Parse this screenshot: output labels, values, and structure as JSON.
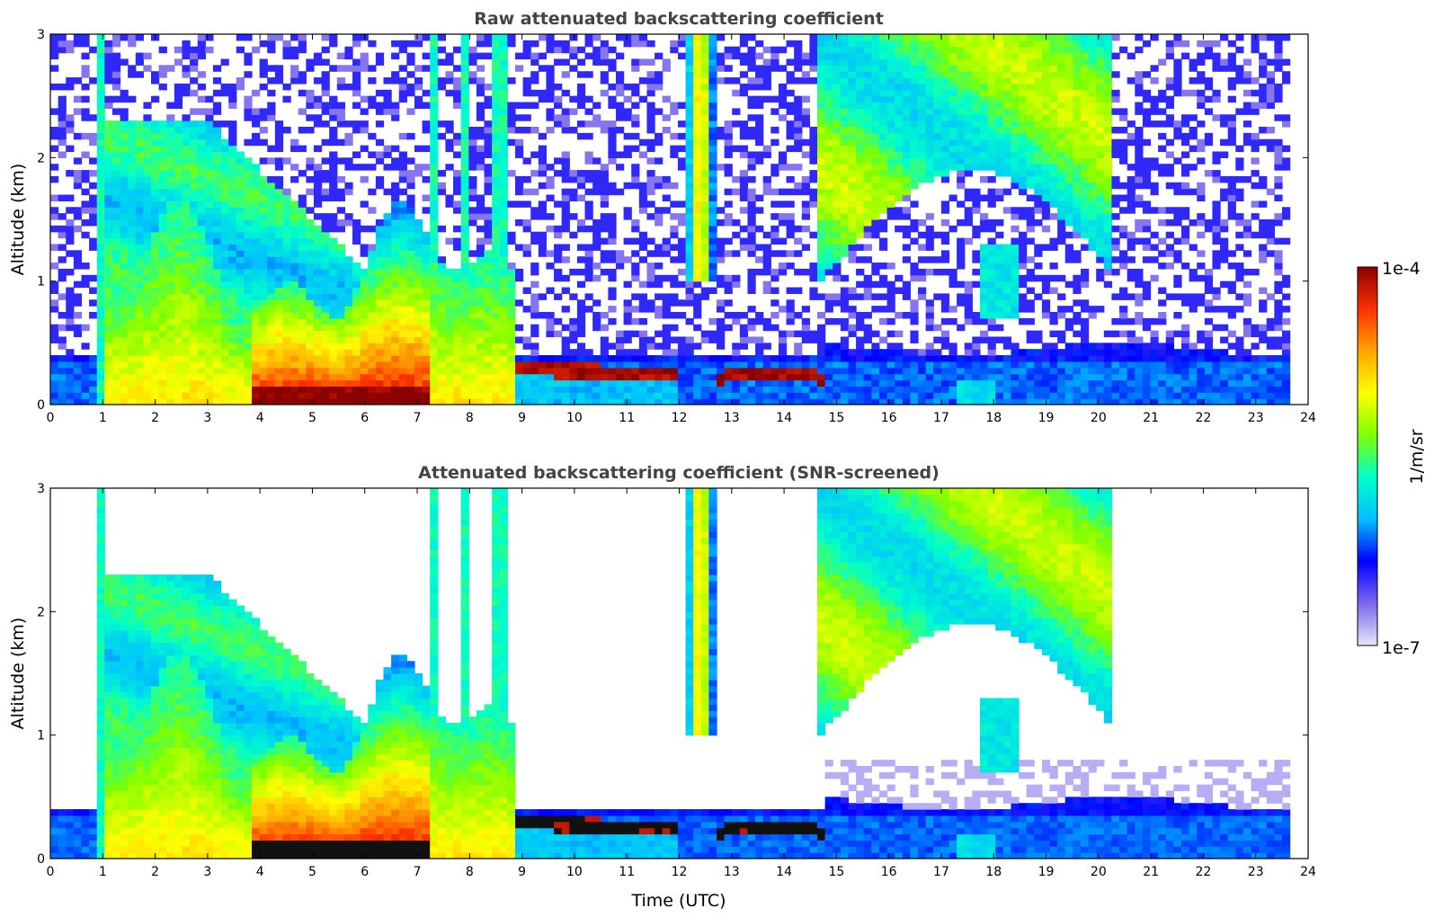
{
  "chart_data": [
    {
      "type": "heatmap",
      "title": "Raw attenuated backscattering coefficient",
      "xlabel": "",
      "ylabel": "Altitude (km)",
      "xlim": [
        0,
        24
      ],
      "ylim": [
        0,
        3
      ],
      "xticks": [
        "0",
        "1",
        "2",
        "3",
        "4",
        "5",
        "6",
        "7",
        "8",
        "9",
        "10",
        "11",
        "12",
        "13",
        "14",
        "15",
        "16",
        "17",
        "18",
        "19",
        "20",
        "21",
        "22",
        "23",
        "24"
      ],
      "yticks": [
        "0",
        "1",
        "2",
        "3"
      ],
      "data_end_time": 23.65,
      "screened": false,
      "features": [
        {
          "name": "boundary layer aerosol",
          "t_start": 1.1,
          "t_end": 8.9,
          "alt_top": 1.3,
          "intensity": "high"
        },
        {
          "name": "cloud layer",
          "t_start": 8.8,
          "t_end": 11.9,
          "alt_bottom": 0.2,
          "alt_top": 0.4,
          "intensity": "saturated"
        },
        {
          "name": "cloud layer",
          "t_start": 12.8,
          "t_end": 14.8,
          "alt_bottom": 0.15,
          "alt_top": 0.3,
          "intensity": "saturated"
        },
        {
          "name": "elevated aerosol plume",
          "t_start": 14.7,
          "t_end": 20.2,
          "alt_bottom": 1.0,
          "alt_top": 3.0,
          "intensity": "medium"
        },
        {
          "name": "plume",
          "t_start": 12.0,
          "t_end": 12.8,
          "alt_bottom": 1.0,
          "alt_top": 3.0,
          "intensity": "medium"
        }
      ]
    },
    {
      "type": "heatmap",
      "title": "Attenuated backscattering coefficient (SNR-screened)",
      "xlabel": "Time (UTC)",
      "ylabel": "Altitude (km)",
      "xlim": [
        0,
        24
      ],
      "ylim": [
        0,
        3
      ],
      "xticks": [
        "0",
        "1",
        "2",
        "3",
        "4",
        "5",
        "6",
        "7",
        "8",
        "9",
        "10",
        "11",
        "12",
        "13",
        "14",
        "15",
        "16",
        "17",
        "18",
        "19",
        "20",
        "21",
        "22",
        "23",
        "24"
      ],
      "yticks": [
        "0",
        "1",
        "2",
        "3"
      ],
      "data_end_time": 23.65,
      "screened": true
    }
  ],
  "colorbar": {
    "label": "1/m/sr",
    "max_label": "1e-4",
    "min_label": "1e-7",
    "colors": [
      "#e6e6fa",
      "#7b68ee",
      "#0000ff",
      "#00bfff",
      "#00ffcc",
      "#7fff00",
      "#ffff00",
      "#ffa500",
      "#ff3000",
      "#8b0000"
    ]
  }
}
